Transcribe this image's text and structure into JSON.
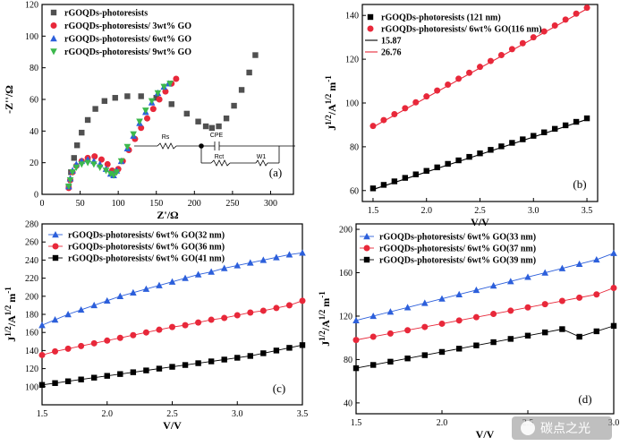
{
  "watermark": {
    "text": "碳点之光"
  },
  "chart_data": [
    {
      "type": "scatter",
      "panel_label": "(a)",
      "xlabel": "Z'/Ω",
      "ylabel": "-Z''/Ω",
      "xlim": [
        0,
        330
      ],
      "ylim": [
        0,
        120
      ],
      "xticks": [
        "0",
        "50",
        "100",
        "150",
        "200",
        "250",
        "300"
      ],
      "yticks": [
        "0",
        "20",
        "40",
        "60",
        "80",
        "100",
        "120"
      ],
      "legend_position": "top-left",
      "series": [
        {
          "name": "rGOQDs-photoresists",
          "marker": "square",
          "color": "#505050",
          "x": [
            35,
            38,
            42,
            46,
            52,
            60,
            70,
            82,
            96,
            112,
            130,
            150,
            170,
            190,
            205,
            215,
            223,
            232,
            242,
            252,
            262,
            272,
            280
          ],
          "y": [
            5,
            14,
            23,
            31,
            39,
            47,
            54,
            59,
            61,
            62,
            62,
            61,
            57,
            51,
            46,
            43,
            42,
            43,
            48,
            56,
            66,
            77,
            88
          ]
        },
        {
          "name": "rGOQDs-photoresists/ 3wt% GO",
          "marker": "circle",
          "color": "#e8283a",
          "x": [
            35,
            37,
            40,
            45,
            52,
            60,
            69,
            78,
            86,
            92,
            96,
            100,
            106,
            114,
            122,
            130,
            138,
            146,
            154,
            162,
            170,
            176
          ],
          "y": [
            4,
            9,
            14,
            18,
            21,
            23,
            24,
            22,
            19,
            15,
            14,
            16,
            21,
            28,
            35,
            42,
            48,
            54,
            60,
            65,
            70,
            73
          ]
        },
        {
          "name": "rGOQDs-photoresists/ 6wt% GO",
          "marker": "triangle-up",
          "color": "#2c5fdb",
          "x": [
            35,
            37,
            40,
            45,
            52,
            60,
            68,
            76,
            84,
            90,
            94,
            98,
            104,
            112,
            120,
            128,
            136,
            144,
            152,
            160,
            166
          ],
          "y": [
            5,
            10,
            15,
            19,
            21,
            22,
            21,
            19,
            16,
            13,
            12,
            15,
            21,
            29,
            37,
            45,
            52,
            58,
            64,
            68,
            70
          ]
        },
        {
          "name": "rGOQDs-photoresists/ 9wt% GO",
          "marker": "triangle-down",
          "color": "#3cb84c",
          "x": [
            35,
            37,
            40,
            45,
            52,
            60,
            68,
            76,
            84,
            90,
            94,
            98,
            104,
            112,
            120,
            128,
            136,
            144,
            152,
            160,
            168
          ],
          "y": [
            5,
            9,
            14,
            17,
            19,
            20,
            19,
            17,
            15,
            13,
            12,
            14,
            21,
            30,
            38,
            46,
            53,
            59,
            64,
            68,
            70
          ]
        }
      ],
      "circuit_labels": [
        "Rs",
        "CPE",
        "Rct",
        "W1"
      ]
    },
    {
      "type": "scatter",
      "panel_label": "(b)",
      "xlabel": "V/V",
      "ylabel": "J^1/2/A^1/2 m^-1",
      "ylabel_main": "J",
      "ylabel_sup1": "1/2",
      "ylabel_mid": "/A",
      "ylabel_sup2": "1/2",
      "ylabel_tail": " m",
      "ylabel_sup3": "-1",
      "xlim": [
        1.4,
        3.6
      ],
      "ylim": [
        55,
        145
      ],
      "xticks": [
        1.5,
        2.0,
        2.5,
        3.0,
        3.5
      ],
      "yticks": [
        60,
        80,
        100,
        120,
        140
      ],
      "legend_position": "top-left",
      "series": [
        {
          "name": "rGOQDs-photoresists (121 nm)",
          "marker": "square",
          "color": "#000000",
          "x": [
            1.5,
            1.6,
            1.7,
            1.8,
            1.9,
            2.0,
            2.1,
            2.2,
            2.3,
            2.4,
            2.5,
            2.6,
            2.7,
            2.8,
            2.9,
            3.0,
            3.1,
            3.2,
            3.3,
            3.4,
            3.5
          ],
          "y": [
            61,
            62.6,
            64.2,
            65.8,
            67.4,
            69,
            70.6,
            72.2,
            73.8,
            75.4,
            77,
            78.6,
            80.2,
            81.8,
            83.4,
            85,
            86.6,
            88.2,
            89.8,
            91.4,
            93
          ]
        },
        {
          "name": "rGOQDs-photoresists/ 6wt% GO(116 nm)",
          "marker": "circle",
          "color": "#e8283a",
          "x": [
            1.5,
            1.6,
            1.7,
            1.8,
            1.9,
            2.0,
            2.1,
            2.2,
            2.3,
            2.4,
            2.5,
            2.6,
            2.7,
            2.8,
            2.9,
            3.0,
            3.1,
            3.2,
            3.3,
            3.4,
            3.5
          ],
          "y": [
            89.5,
            92.2,
            94.9,
            97.6,
            100.3,
            103,
            105.7,
            108.4,
            111.1,
            113.8,
            116.5,
            119.2,
            121.9,
            124.6,
            127.3,
            130,
            132.7,
            135.4,
            138.1,
            140.8,
            143.5
          ]
        }
      ],
      "fits": [
        {
          "name": "15.87",
          "color": "#000000",
          "x": [
            1.5,
            3.5
          ],
          "y": [
            60.5,
            92.5
          ]
        },
        {
          "name": "26.76",
          "color": "#e8283a",
          "x": [
            1.5,
            3.5
          ],
          "y": [
            89.0,
            143.0
          ]
        }
      ]
    },
    {
      "type": "scatter",
      "panel_label": "(c)",
      "xlabel": "V/V",
      "ylabel_main": "J",
      "ylabel_sup1": "1/2",
      "ylabel_mid": "/A",
      "ylabel_sup2": "1/2",
      "ylabel_tail": " m",
      "ylabel_sup3": "-1",
      "xlim": [
        1.5,
        3.5
      ],
      "ylim": [
        80,
        280
      ],
      "xticks": [
        1.5,
        2.0,
        2.5,
        3.0,
        3.5
      ],
      "yticks": [
        100,
        120,
        140,
        160,
        180,
        200,
        220,
        240,
        260,
        280
      ],
      "legend_position": "top-left",
      "series": [
        {
          "name": "rGOQDs-photoresists/ 6wt% GO(32 nm)",
          "marker": "triangle-up",
          "color": "#2c5fdb",
          "x": [
            1.5,
            1.6,
            1.7,
            1.8,
            1.9,
            2.0,
            2.1,
            2.2,
            2.3,
            2.4,
            2.5,
            2.6,
            2.7,
            2.8,
            2.9,
            3.0,
            3.1,
            3.2,
            3.3,
            3.4,
            3.5
          ],
          "y": [
            168,
            174,
            180,
            185,
            190,
            195,
            200,
            204,
            208,
            212,
            216,
            220,
            224,
            227,
            231,
            234,
            237,
            240,
            243,
            246,
            248
          ]
        },
        {
          "name": "rGOQDs-photoresists/ 6wt% GO(36 nm)",
          "marker": "circle",
          "color": "#e8283a",
          "x": [
            1.5,
            1.6,
            1.7,
            1.8,
            1.9,
            2.0,
            2.1,
            2.2,
            2.3,
            2.4,
            2.5,
            2.6,
            2.7,
            2.8,
            2.9,
            3.0,
            3.1,
            3.2,
            3.3,
            3.4,
            3.5
          ],
          "y": [
            135,
            139,
            142,
            145,
            148,
            151,
            154,
            157,
            160,
            163,
            166,
            168,
            171,
            174,
            176,
            179,
            182,
            184,
            187,
            190,
            195
          ]
        },
        {
          "name": "rGOQDs-photoresists/ 6wt% GO(41 nm)",
          "marker": "square",
          "color": "#000000",
          "x": [
            1.5,
            1.6,
            1.7,
            1.8,
            1.9,
            2.0,
            2.1,
            2.2,
            2.3,
            2.4,
            2.5,
            2.6,
            2.7,
            2.8,
            2.9,
            3.0,
            3.1,
            3.2,
            3.3,
            3.4,
            3.5
          ],
          "y": [
            102,
            104,
            106,
            108,
            110,
            112,
            114,
            116,
            118,
            120,
            122,
            124,
            126,
            128,
            130,
            132,
            134,
            137,
            140,
            143,
            146
          ]
        }
      ]
    },
    {
      "type": "scatter",
      "panel_label": "(d)",
      "xlabel": "V/V",
      "ylabel_main": "J",
      "ylabel_sup1": "1/2",
      "ylabel_mid": "/A",
      "ylabel_sup2": "1/2",
      "ylabel_tail": " m",
      "ylabel_sup3": "-1",
      "xlim": [
        1.5,
        3.0
      ],
      "ylim": [
        30,
        205
      ],
      "xticks": [
        1.5,
        2.0,
        2.5,
        3.0
      ],
      "yticks": [
        40,
        80,
        120,
        160,
        200
      ],
      "legend_position": "top-left",
      "series": [
        {
          "name": "rGOQDs-photoresists/ 6wt% GO(33 nm)",
          "marker": "triangle-up",
          "color": "#2c5fdb",
          "x": [
            1.5,
            1.6,
            1.7,
            1.8,
            1.9,
            2.0,
            2.1,
            2.2,
            2.3,
            2.4,
            2.5,
            2.6,
            2.7,
            2.8,
            2.9,
            3.0
          ],
          "y": [
            116,
            120,
            124,
            128,
            132,
            136,
            140,
            144,
            148,
            152,
            156,
            160,
            164,
            168,
            172,
            178
          ]
        },
        {
          "name": "rGOQDs-photoresists/ 6wt% GO(37 nm)",
          "marker": "circle",
          "color": "#e8283a",
          "x": [
            1.5,
            1.6,
            1.7,
            1.8,
            1.9,
            2.0,
            2.1,
            2.2,
            2.3,
            2.4,
            2.5,
            2.6,
            2.7,
            2.8,
            2.9,
            3.0
          ],
          "y": [
            98,
            101,
            104,
            107,
            110,
            113,
            116,
            119,
            122,
            125,
            128,
            131,
            134,
            137,
            140,
            146
          ]
        },
        {
          "name": "rGOQDs-photoresists/ 6wt% GO(39 nm)",
          "marker": "square",
          "color": "#000000",
          "x": [
            1.5,
            1.6,
            1.7,
            1.8,
            1.9,
            2.0,
            2.1,
            2.2,
            2.3,
            2.4,
            2.5,
            2.6,
            2.7,
            2.8,
            2.9,
            3.0
          ],
          "y": [
            72,
            75,
            78,
            81,
            84,
            87,
            90,
            93,
            96,
            99,
            102,
            105,
            108,
            101,
            106,
            111
          ]
        }
      ]
    }
  ]
}
